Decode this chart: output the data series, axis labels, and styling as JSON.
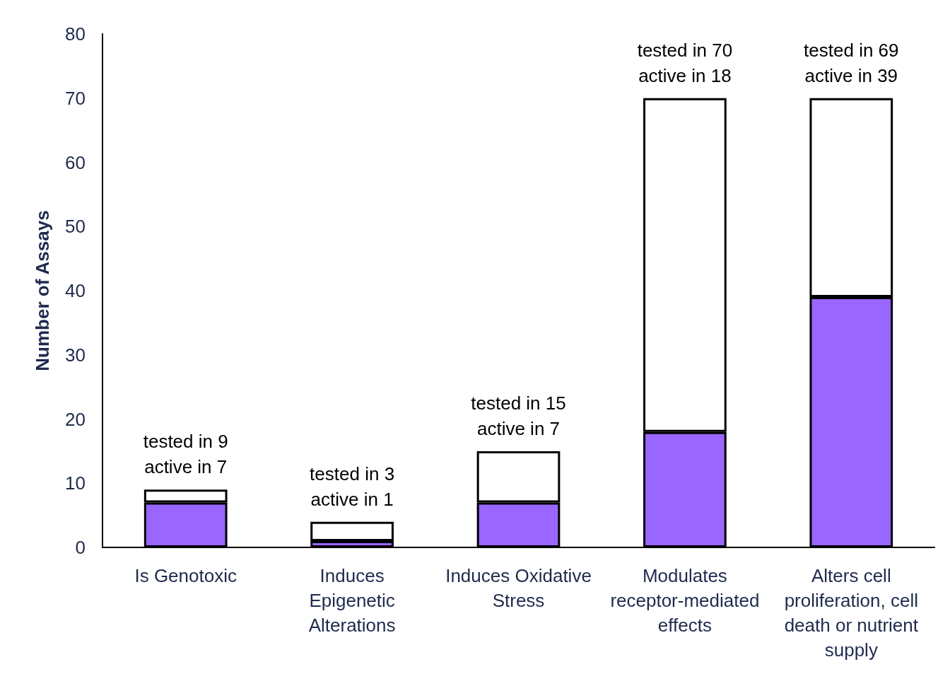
{
  "chart_data": {
    "type": "bar",
    "stacked": true,
    "ylabel": "Number of Assays",
    "categories": [
      "Is Genotoxic",
      "Induces\nEpigenetic\nAlterations",
      "Induces Oxidative\nStress",
      "Modulates\nreceptor-mediated\neffects",
      "Alters cell\nproliferation, cell\ndeath or nutrient\nsupply"
    ],
    "series": [
      {
        "color": "#9966ff",
        "values": [
          7,
          1,
          7,
          18,
          39
        ]
      },
      {
        "color": "#ffffff",
        "values": [
          2,
          3,
          8,
          52,
          31
        ]
      }
    ],
    "ylim": [
      0,
      80
    ],
    "yticks": [
      0,
      10,
      20,
      30,
      40,
      50,
      60,
      70,
      80
    ],
    "grid": false,
    "annotations": [
      {
        "text": "tested in 9\nactive in 7",
        "x": "Is Genotoxic",
        "y": 9
      },
      {
        "text": "tested in 3\nactive in 1",
        "x": "Induces\nEpigenetic\nAlterations",
        "y": 4
      },
      {
        "text": "tested in 15\nactive in 7",
        "x": "Induces Oxidative\nStress",
        "y": 15
      },
      {
        "text": "tested in 70\nactive in 18",
        "x": "Modulates\nreceptor-mediated\neffects",
        "y": 70
      },
      {
        "text": "tested in 69\nactive in 39",
        "x": "Alters cell\nproliferation, cell\ndeath or nutrient\nsupply",
        "y": 70
      }
    ]
  }
}
